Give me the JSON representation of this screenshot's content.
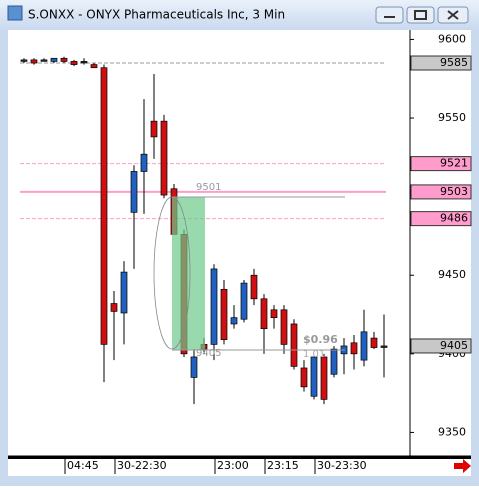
{
  "window_title": "S.ONXX - ONYX Pharmaceuticals Inc, 3 Min",
  "chart_data": {
    "type": "candlestick",
    "categories": [
      null,
      null,
      null,
      "04:45",
      null,
      null,
      null,
      null,
      "30-22:30",
      null,
      null,
      null,
      null,
      null,
      null,
      null,
      null,
      null,
      "23:00",
      null,
      null,
      null,
      null,
      "23:15",
      null,
      null,
      null,
      null,
      "30-23:30",
      null,
      null,
      null,
      null,
      null,
      null,
      null,
      null
    ],
    "open": [
      9587,
      9587,
      9587,
      9586,
      9588,
      9586,
      9586,
      9584,
      9582,
      9432,
      9426,
      9490,
      9516,
      9548,
      9548,
      9505,
      9476,
      9385,
      9406,
      9406,
      9441,
      9419,
      9422,
      9450,
      9435,
      9428,
      9428,
      9419,
      9391,
      9373,
      9398,
      9387,
      9400,
      9407,
      9396,
      9410,
      9405
    ],
    "high": [
      9588,
      9588,
      9588,
      9588,
      9589,
      9587,
      9588,
      9585,
      9584,
      9440,
      9459,
      9520,
      9562,
      9578,
      9552,
      9508,
      9479,
      9403,
      9410,
      9457,
      9447,
      9431,
      9447,
      9454,
      9438,
      9431,
      9431,
      9422,
      9396,
      9398,
      9400,
      9405,
      9410,
      9412,
      9428,
      9414,
      9425
    ],
    "low": [
      9585,
      9584,
      9586,
      9585,
      9585,
      9583,
      9584,
      9582,
      9382,
      9396,
      9406,
      9454,
      9489,
      9524,
      9499,
      9476,
      9398,
      9368,
      9400,
      9396,
      9406,
      9416,
      9420,
      9431,
      9400,
      9416,
      9400,
      9390,
      9376,
      9371,
      9368,
      9385,
      9387,
      9390,
      9392,
      9403,
      9385
    ],
    "close": [
      9587,
      9585,
      9587,
      9588,
      9586,
      9584,
      9586,
      9582,
      9406,
      9427,
      9452,
      9516,
      9527,
      9538,
      9501,
      9476,
      9400,
      9398,
      9403,
      9454,
      9409,
      9423,
      9445,
      9435,
      9416,
      9423,
      9406,
      9392,
      9379,
      9398,
      9371,
      9403,
      9405,
      9400,
      9414,
      9404,
      9405
    ],
    "up_color": "#2060c0",
    "down_color": "#d01010",
    "ylim": [
      9335,
      9606
    ],
    "yticks": [
      9350,
      9400,
      9450,
      9550,
      9600
    ],
    "price_levels": [
      {
        "value": 9585,
        "color": "#c8c8c8"
      },
      {
        "value": 9521,
        "color": "#ff9ccc"
      },
      {
        "value": 9503,
        "color": "#ff9ccc"
      },
      {
        "value": 9486,
        "color": "#ff9ccc"
      },
      {
        "value": 9405,
        "color": "#c8c8c8"
      }
    ],
    "annotations": [
      "9501",
      "9405",
      "$0.96",
      "1.01"
    ]
  }
}
